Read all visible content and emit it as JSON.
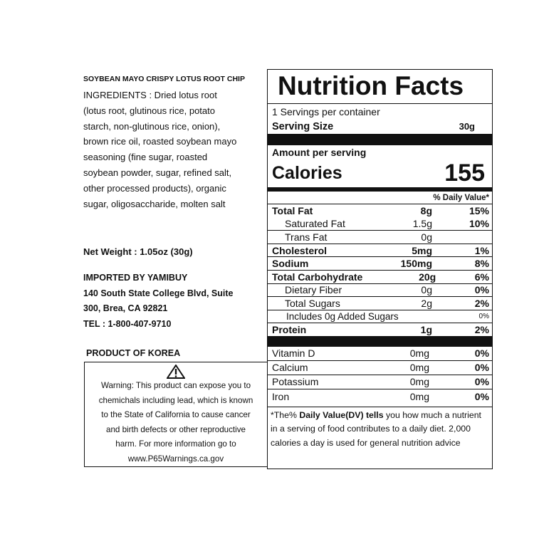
{
  "product_name": "SOYBEAN MAYO CRISPY LOTUS ROOT CHIP",
  "ingredients": [
    "INGREDIENTS : Dried lotus root",
    "(lotus root, glutinous rice, potato",
    "starch, non-glutinous rice, onion),",
    "brown rice oil, roasted soybean mayo",
    "seasoning (fine sugar, roasted",
    "soybean powder, sugar, refined salt,",
    "other processed products), organic",
    "sugar, oligosaccharide, molten salt"
  ],
  "net_weight": "Net Weight : 1.05oz (30g)",
  "importer": [
    "IMPORTED BY YAMIBUY",
    "140 South State College Blvd, Suite",
    "300, Brea, CA 92821",
    "TEL : 1-800-407-9710"
  ],
  "origin": "PRODUCT OF KOREA",
  "warning": {
    "icon": "warning-triangle-icon",
    "lines": [
      "Warning: This product can expose you to",
      "chemichals including lead, which is known",
      "to the State of California to cause cancer",
      "and birth defects or other reproductive",
      "harm. For more information go to",
      "www.P65Warnings.ca.gov"
    ]
  },
  "nutrition": {
    "title": "Nutrition Facts",
    "servings": "1 Servings per container",
    "serving_size_label": "Serving Size",
    "serving_size": "30g",
    "amount_label": "Amount per serving",
    "calories_label": "Calories",
    "calories": "155",
    "dv_header": "% Daily Value*",
    "nutrients": [
      {
        "name": "Total Fat",
        "amount": "8g",
        "dv": "15%",
        "bold": true,
        "indent": 0
      },
      {
        "name": "Saturated Fat",
        "amount": "1.5g",
        "dv": "10%",
        "bold": false,
        "indent": 1
      },
      {
        "name": "Trans Fat",
        "amount": "0g",
        "dv": "",
        "bold": false,
        "indent": 1
      },
      {
        "name": "Cholesterol",
        "amount": "5mg",
        "dv": "1%",
        "bold": true,
        "indent": 0
      },
      {
        "name": "Sodium",
        "amount": "150mg",
        "dv": "8%",
        "bold": true,
        "indent": 0
      },
      {
        "name": "Total Carbohydrate",
        "amount": "20g",
        "dv": "6%",
        "bold": true,
        "indent": 0
      },
      {
        "name": "Dietary Fiber",
        "amount": "0g",
        "dv": "0%",
        "bold": false,
        "indent": 1
      },
      {
        "name": "Total Sugars",
        "amount": "2g",
        "dv": "2%",
        "bold": false,
        "indent": 1
      },
      {
        "name": "Includes 0g Added Sugars",
        "amount": "",
        "dv": "0%",
        "bold": false,
        "indent": 2
      },
      {
        "name": "Protein",
        "amount": "1g",
        "dv": "2%",
        "bold": true,
        "indent": 0
      }
    ],
    "vitamins": [
      {
        "name": "Vitamin D",
        "amount": "0mg",
        "dv": "0%"
      },
      {
        "name": "Calcium",
        "amount": "0mg",
        "dv": "0%"
      },
      {
        "name": "Potassium",
        "amount": "0mg",
        "dv": "0%"
      },
      {
        "name": "Iron",
        "amount": "0mg",
        "dv": "0%"
      }
    ],
    "footnote": {
      "pre": "*The% ",
      "bold": "Daily Value(DV) tells",
      "post": " you how much a nutrient in a serving of food contributes to a daily diet. 2,000 calories a day is used for general nutrition advice"
    }
  }
}
